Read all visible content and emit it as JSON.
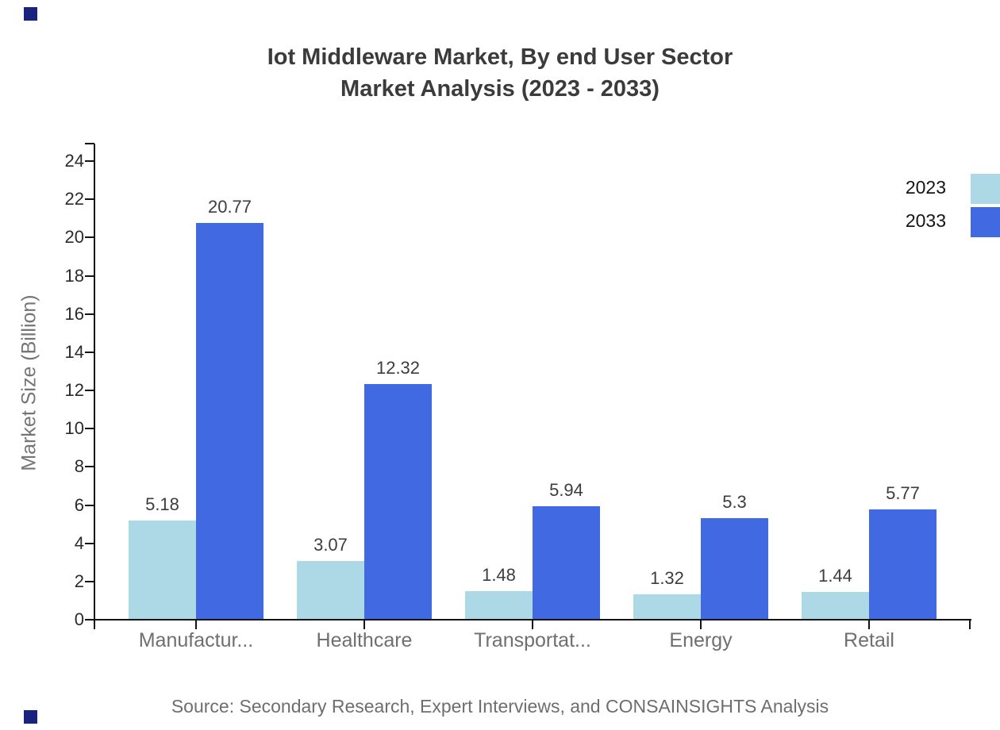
{
  "title_line1": "Iot Middleware Market, By end User Sector",
  "title_line2": "Market Analysis (2023 - 2033)",
  "source_note": "Source: Secondary Research, Expert Interviews, and CONSAINSIGHTS Analysis",
  "colors": {
    "series_2023": "#ADD8E6",
    "series_2033": "#4169E1",
    "title_text": "#3b3b3b",
    "axis": "#141414",
    "corner_marker": "#1a237e"
  },
  "legend": {
    "items": [
      {
        "label": "2023",
        "color": "#ADD8E6"
      },
      {
        "label": "2033",
        "color": "#4169E1"
      }
    ]
  },
  "chart_data": {
    "type": "bar",
    "title": "Iot Middleware Market, By end User Sector Market Analysis (2023 - 2033)",
    "categories": [
      "Manufactur...",
      "Healthcare",
      "Transportat...",
      "Energy",
      "Retail"
    ],
    "series": [
      {
        "name": "2023",
        "color": "#ADD8E6",
        "values": [
          5.18,
          3.07,
          1.48,
          1.32,
          1.44
        ],
        "labels": [
          "5.18",
          "3.07",
          "1.48",
          "1.32",
          "1.44"
        ]
      },
      {
        "name": "2033",
        "color": "#4169E1",
        "values": [
          20.77,
          12.32,
          5.94,
          5.3,
          5.77
        ],
        "labels": [
          "20.77",
          "12.32",
          "5.94",
          "5.3",
          "5.77"
        ]
      }
    ],
    "xlabel": "",
    "ylabel": "Market Size (Billion)",
    "ylim": [
      0,
      24
    ],
    "ytick_step": 2,
    "grid": false,
    "legend_position": "top-right"
  }
}
